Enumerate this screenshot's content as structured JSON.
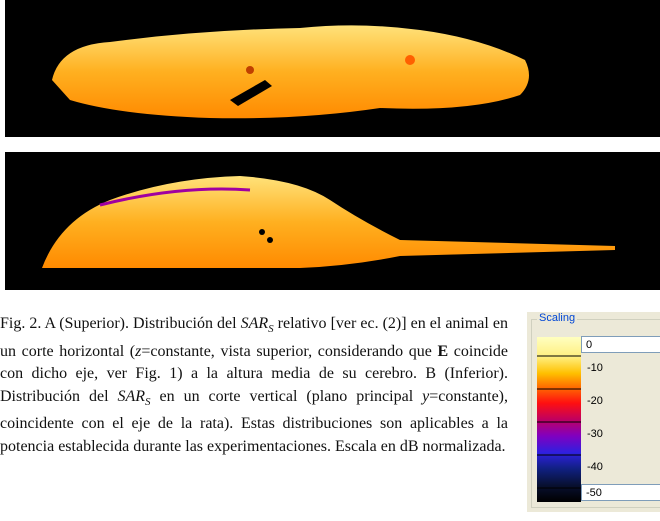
{
  "caption": {
    "segments": [
      "Fig. 2.  A (Superior). Distribución del ",
      "SAR",
      "S",
      " relativo [ver ec. (2)] en el animal en un corte horizontal (",
      "z",
      "=constante, vista superior, considerando que ",
      "E",
      " coincide con dicho eje, ver Fig. 1) a la altura media de su cerebro. B (Inferior). Distribución del ",
      "SAR",
      "S",
      " en un corte vertical (plano principal ",
      "y",
      "=constante), coincidente con el eje de la rata). Estas distribuciones son aplicables a la potencia establecida durante las experimentaciones. Escala en dB normalizada."
    ]
  },
  "scaling": {
    "title": "Scaling",
    "labels": [
      "0",
      "-10",
      "-20",
      "-30",
      "-40",
      "-50"
    ]
  }
}
